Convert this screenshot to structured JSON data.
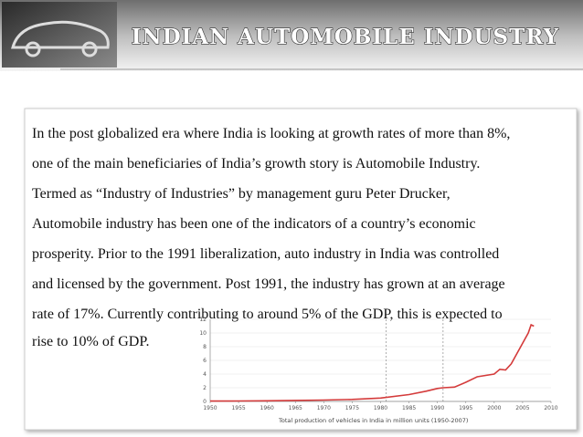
{
  "header": {
    "title": "INDIAN AUTOMOBILE INDUSTRY"
  },
  "body": {
    "lines": [
      "In the post globalized era where India is looking at growth rates of more than 8%,",
      "one of the main beneficiaries of India’s growth story is Automobile Industry.",
      "Termed as “Industry of Industries” by management guru Peter Drucker,",
      "Automobile industry has been one of the indicators of a country’s economic",
      "prosperity. Prior to the 1991 liberalization, auto industry in India was controlled",
      "and licensed by the government. Post 1991, the industry has grown at an average",
      "rate of 17%. Currently contributing to around 5% of the GDP, this is expected to",
      "rise to 10% of GDP."
    ]
  },
  "chart_data": {
    "type": "line",
    "caption": "Total production of vehicles in India in million units (1950-2007)",
    "x": [
      1950,
      1955,
      1960,
      1965,
      1970,
      1975,
      1980,
      1985,
      1988,
      1990,
      1991,
      1993,
      1995,
      1997,
      2000,
      2001,
      2002,
      2003,
      2004,
      2005,
      2006,
      2006.5,
      2007
    ],
    "values": [
      0.05,
      0.07,
      0.1,
      0.15,
      0.2,
      0.3,
      0.5,
      1.0,
      1.5,
      1.9,
      2.0,
      2.1,
      2.8,
      3.6,
      4.0,
      4.7,
      4.6,
      5.5,
      7.0,
      8.5,
      10.0,
      11.2,
      11.0
    ],
    "color": "#d43b3b",
    "vlines": [
      1981,
      1991
    ],
    "xlim": [
      1950,
      2010
    ],
    "xticks": [
      1950,
      1955,
      1960,
      1965,
      1970,
      1975,
      1980,
      1985,
      1990,
      1995,
      2000,
      2005,
      2010
    ],
    "ylim": [
      0,
      12
    ],
    "yticks": [
      0,
      2,
      4,
      6,
      8,
      10,
      12
    ],
    "grid": true
  }
}
